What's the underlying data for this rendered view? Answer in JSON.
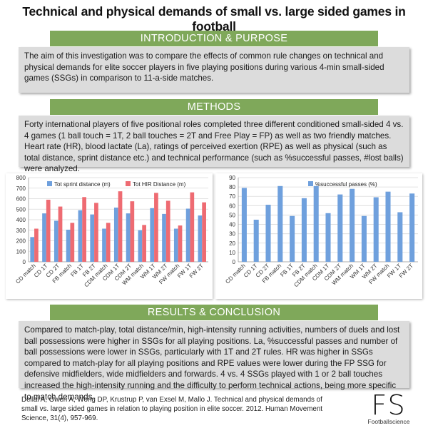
{
  "title": "Technical and physical demands of small vs. large sided games in football",
  "sections": {
    "intro": {
      "heading": "INTRODUCTION & PURPOSE",
      "text": "The aim of this investigation was to compare the effects of common rule changes on technical and physical demands for elite soccer players in five playing positions during various 4-min small-sided games (SSGs) in comparison to 11-a-side matches."
    },
    "methods": {
      "heading": "METHODS",
      "text": "Forty international players of five positional roles completed three different conditioned small-sided 4 vs. 4 games (1 ball touch = 1T, 2 ball touches = 2T and Free Play = FP) as well as two friendly matches. Heart rate (HR), blood lactate (La), ratings of perceived exertion (RPE) as well as physical (such as total distance, sprint distance etc.) and technical performance (such as %successful passes, #lost balls) were analyzed."
    },
    "results": {
      "heading": "RESULTS & CONCLUSION",
      "text": "Compared to match-play, total distance/min, high-intensity running activities, numbers of duels and lost ball possessions were higher in SSGs for all playing positions. La, %successful passes and number of ball possessions were lower in SSGs, particularly with 1T and 2T rules. HR was higher in SSGs compared to match-play for all playing positions and RPE values were lower during the FP SSG for defensive midfielders, wide midfielders and forwards. 4 vs. 4 SSGs played with 1 or 2 ball touches increased the high-intensity running and the difficulty to perform technical actions, being more specific to match demands."
    }
  },
  "chart_data": [
    {
      "type": "bar",
      "categories": [
        "CD match",
        "CD 1T",
        "CD 2T",
        "FB match",
        "FB 1T",
        "FB 2T",
        "CDM match",
        "CDM 1T",
        "CDM 2T",
        "WM match",
        "WM 1T",
        "WM 2T",
        "FW match",
        "FW 1T",
        "FW 2T"
      ],
      "series": [
        {
          "name": "Tot sprint distance (m)",
          "color": "#6fa0dd",
          "values": [
            235,
            460,
            390,
            305,
            490,
            450,
            315,
            515,
            460,
            300,
            510,
            455,
            315,
            505,
            440
          ]
        },
        {
          "name": "Tot HIR Distance (m)",
          "color": "#ee6b72",
          "values": [
            315,
            590,
            525,
            370,
            615,
            560,
            370,
            670,
            575,
            350,
            655,
            580,
            345,
            660,
            565
          ]
        }
      ],
      "ylim": [
        0,
        800
      ],
      "yticks": [
        "0",
        "100",
        "200",
        "300",
        "400",
        "500",
        "600",
        "700",
        "800"
      ],
      "legend": "top"
    },
    {
      "type": "bar",
      "categories": [
        "CD match",
        "CD 1T",
        "CD 2T",
        "FB match",
        "FB 1T",
        "FB 2T",
        "CDM match",
        "CDM 1T",
        "CDM 2T",
        "WM match",
        "WM 1T",
        "WM 2T",
        "FW match",
        "FW 1T",
        "FW 2T"
      ],
      "series": [
        {
          "name": "%successful passes (%)",
          "color": "#6fa0dd",
          "values": [
            79,
            45,
            61,
            81,
            49,
            68,
            81,
            52,
            72,
            78,
            49,
            69,
            75,
            53,
            73
          ]
        }
      ],
      "ylim": [
        0,
        90
      ],
      "yticks": [
        "0",
        "10",
        "20",
        "30",
        "40",
        "50",
        "60",
        "70",
        "80",
        "90"
      ],
      "legend": "top"
    }
  ],
  "reference": "Dellal A, Owen A, Wong DP, Krustrup P, van Exsel M, Mallo J. Technical and physical demands of small vs. large sided games in relation to playing position in elite soccer. 2012. Human Movement Science, 31(4), 957-969.",
  "logo": {
    "mark": "FS",
    "sub": "Footballscience"
  }
}
